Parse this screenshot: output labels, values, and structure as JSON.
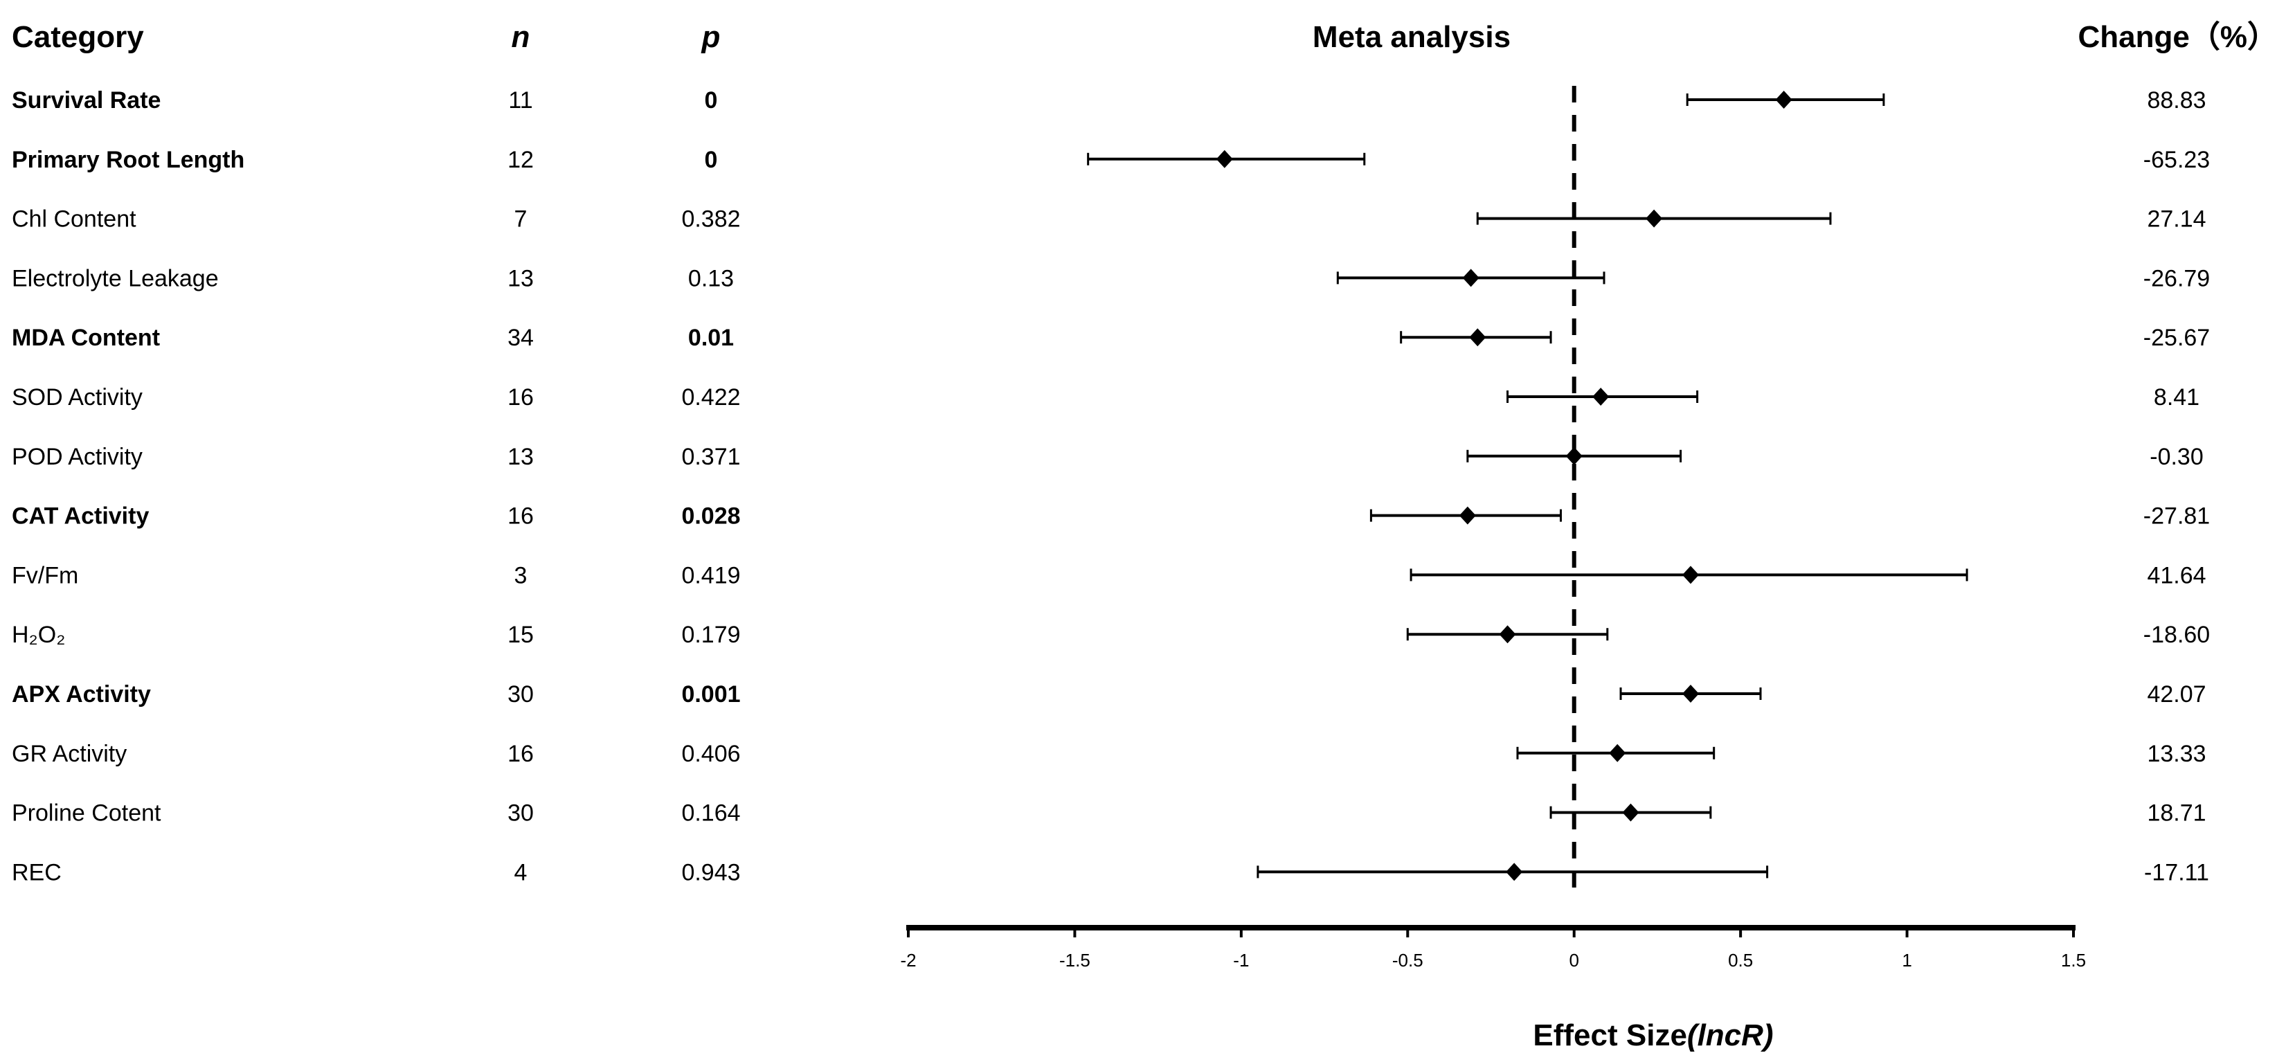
{
  "chart_data": {
    "type": "forest",
    "title": "Meta analysis",
    "xlabel": "Effect Size",
    "xlabel_italic": "(lncR)",
    "xlim": [
      -2,
      1.5
    ],
    "xticks": [
      -2,
      -1.5,
      -1,
      -0.5,
      0,
      0.5,
      1,
      1.5
    ],
    "xtick_labels": [
      "-2",
      "-1.5",
      "-1",
      "-0.5",
      "0",
      "0.5",
      "1",
      "1.5"
    ],
    "reference_line": 0,
    "grid": false,
    "columns": {
      "category": "Category",
      "n": "n",
      "p": "p",
      "change": "Change（%）"
    },
    "rows": [
      {
        "category": "Survival Rate",
        "n": "11",
        "p": "0",
        "change": "88.83",
        "significant": true,
        "mean": 0.63,
        "lower": 0.34,
        "upper": 0.93
      },
      {
        "category": "Primary Root Length",
        "n": "12",
        "p": "0",
        "change": "-65.23",
        "significant": true,
        "mean": -1.05,
        "lower": -1.46,
        "upper": -0.63
      },
      {
        "category": "Chl Content",
        "n": "7",
        "p": "0.382",
        "change": "27.14",
        "significant": false,
        "mean": 0.24,
        "lower": -0.29,
        "upper": 0.77
      },
      {
        "category": "Electrolyte Leakage",
        "n": "13",
        "p": "0.13",
        "change": "-26.79",
        "significant": false,
        "mean": -0.31,
        "lower": -0.71,
        "upper": 0.09
      },
      {
        "category": "MDA Content",
        "n": "34",
        "p": "0.01",
        "change": "-25.67",
        "significant": true,
        "mean": -0.29,
        "lower": -0.52,
        "upper": -0.07
      },
      {
        "category": "SOD Activity",
        "n": "16",
        "p": "0.422",
        "change": "8.41",
        "significant": false,
        "mean": 0.08,
        "lower": -0.2,
        "upper": 0.37
      },
      {
        "category": "POD Activity",
        "n": "13",
        "p": "0.371",
        "change": "-0.30",
        "significant": false,
        "mean": 0.0,
        "lower": -0.32,
        "upper": 0.32
      },
      {
        "category": "CAT Activity",
        "n": "16",
        "p": "0.028",
        "change": "-27.81",
        "significant": true,
        "mean": -0.32,
        "lower": -0.61,
        "upper": -0.04
      },
      {
        "category": "Fv/Fm",
        "n": "3",
        "p": "0.419",
        "change": "41.64",
        "significant": false,
        "mean": 0.35,
        "lower": -0.49,
        "upper": 1.18
      },
      {
        "category": "H₂O₂",
        "n": "15",
        "p": "0.179",
        "change": "-18.60",
        "significant": false,
        "mean": -0.2,
        "lower": -0.5,
        "upper": 0.1
      },
      {
        "category": "APX Activity",
        "n": "30",
        "p": "0.001",
        "change": "42.07",
        "significant": true,
        "mean": 0.35,
        "lower": 0.14,
        "upper": 0.56
      },
      {
        "category": "GR Activity",
        "n": "16",
        "p": "0.406",
        "change": "13.33",
        "significant": false,
        "mean": 0.13,
        "lower": -0.17,
        "upper": 0.42
      },
      {
        "category": "Proline Cotent",
        "n": "30",
        "p": "0.164",
        "change": "18.71",
        "significant": false,
        "mean": 0.17,
        "lower": -0.07,
        "upper": 0.41
      },
      {
        "category": "REC",
        "n": "4",
        "p": "0.943",
        "change": "-17.11",
        "significant": false,
        "mean": -0.18,
        "lower": -0.95,
        "upper": 0.58
      }
    ],
    "colors": {
      "marks": "#000000",
      "background": "#ffffff"
    }
  }
}
